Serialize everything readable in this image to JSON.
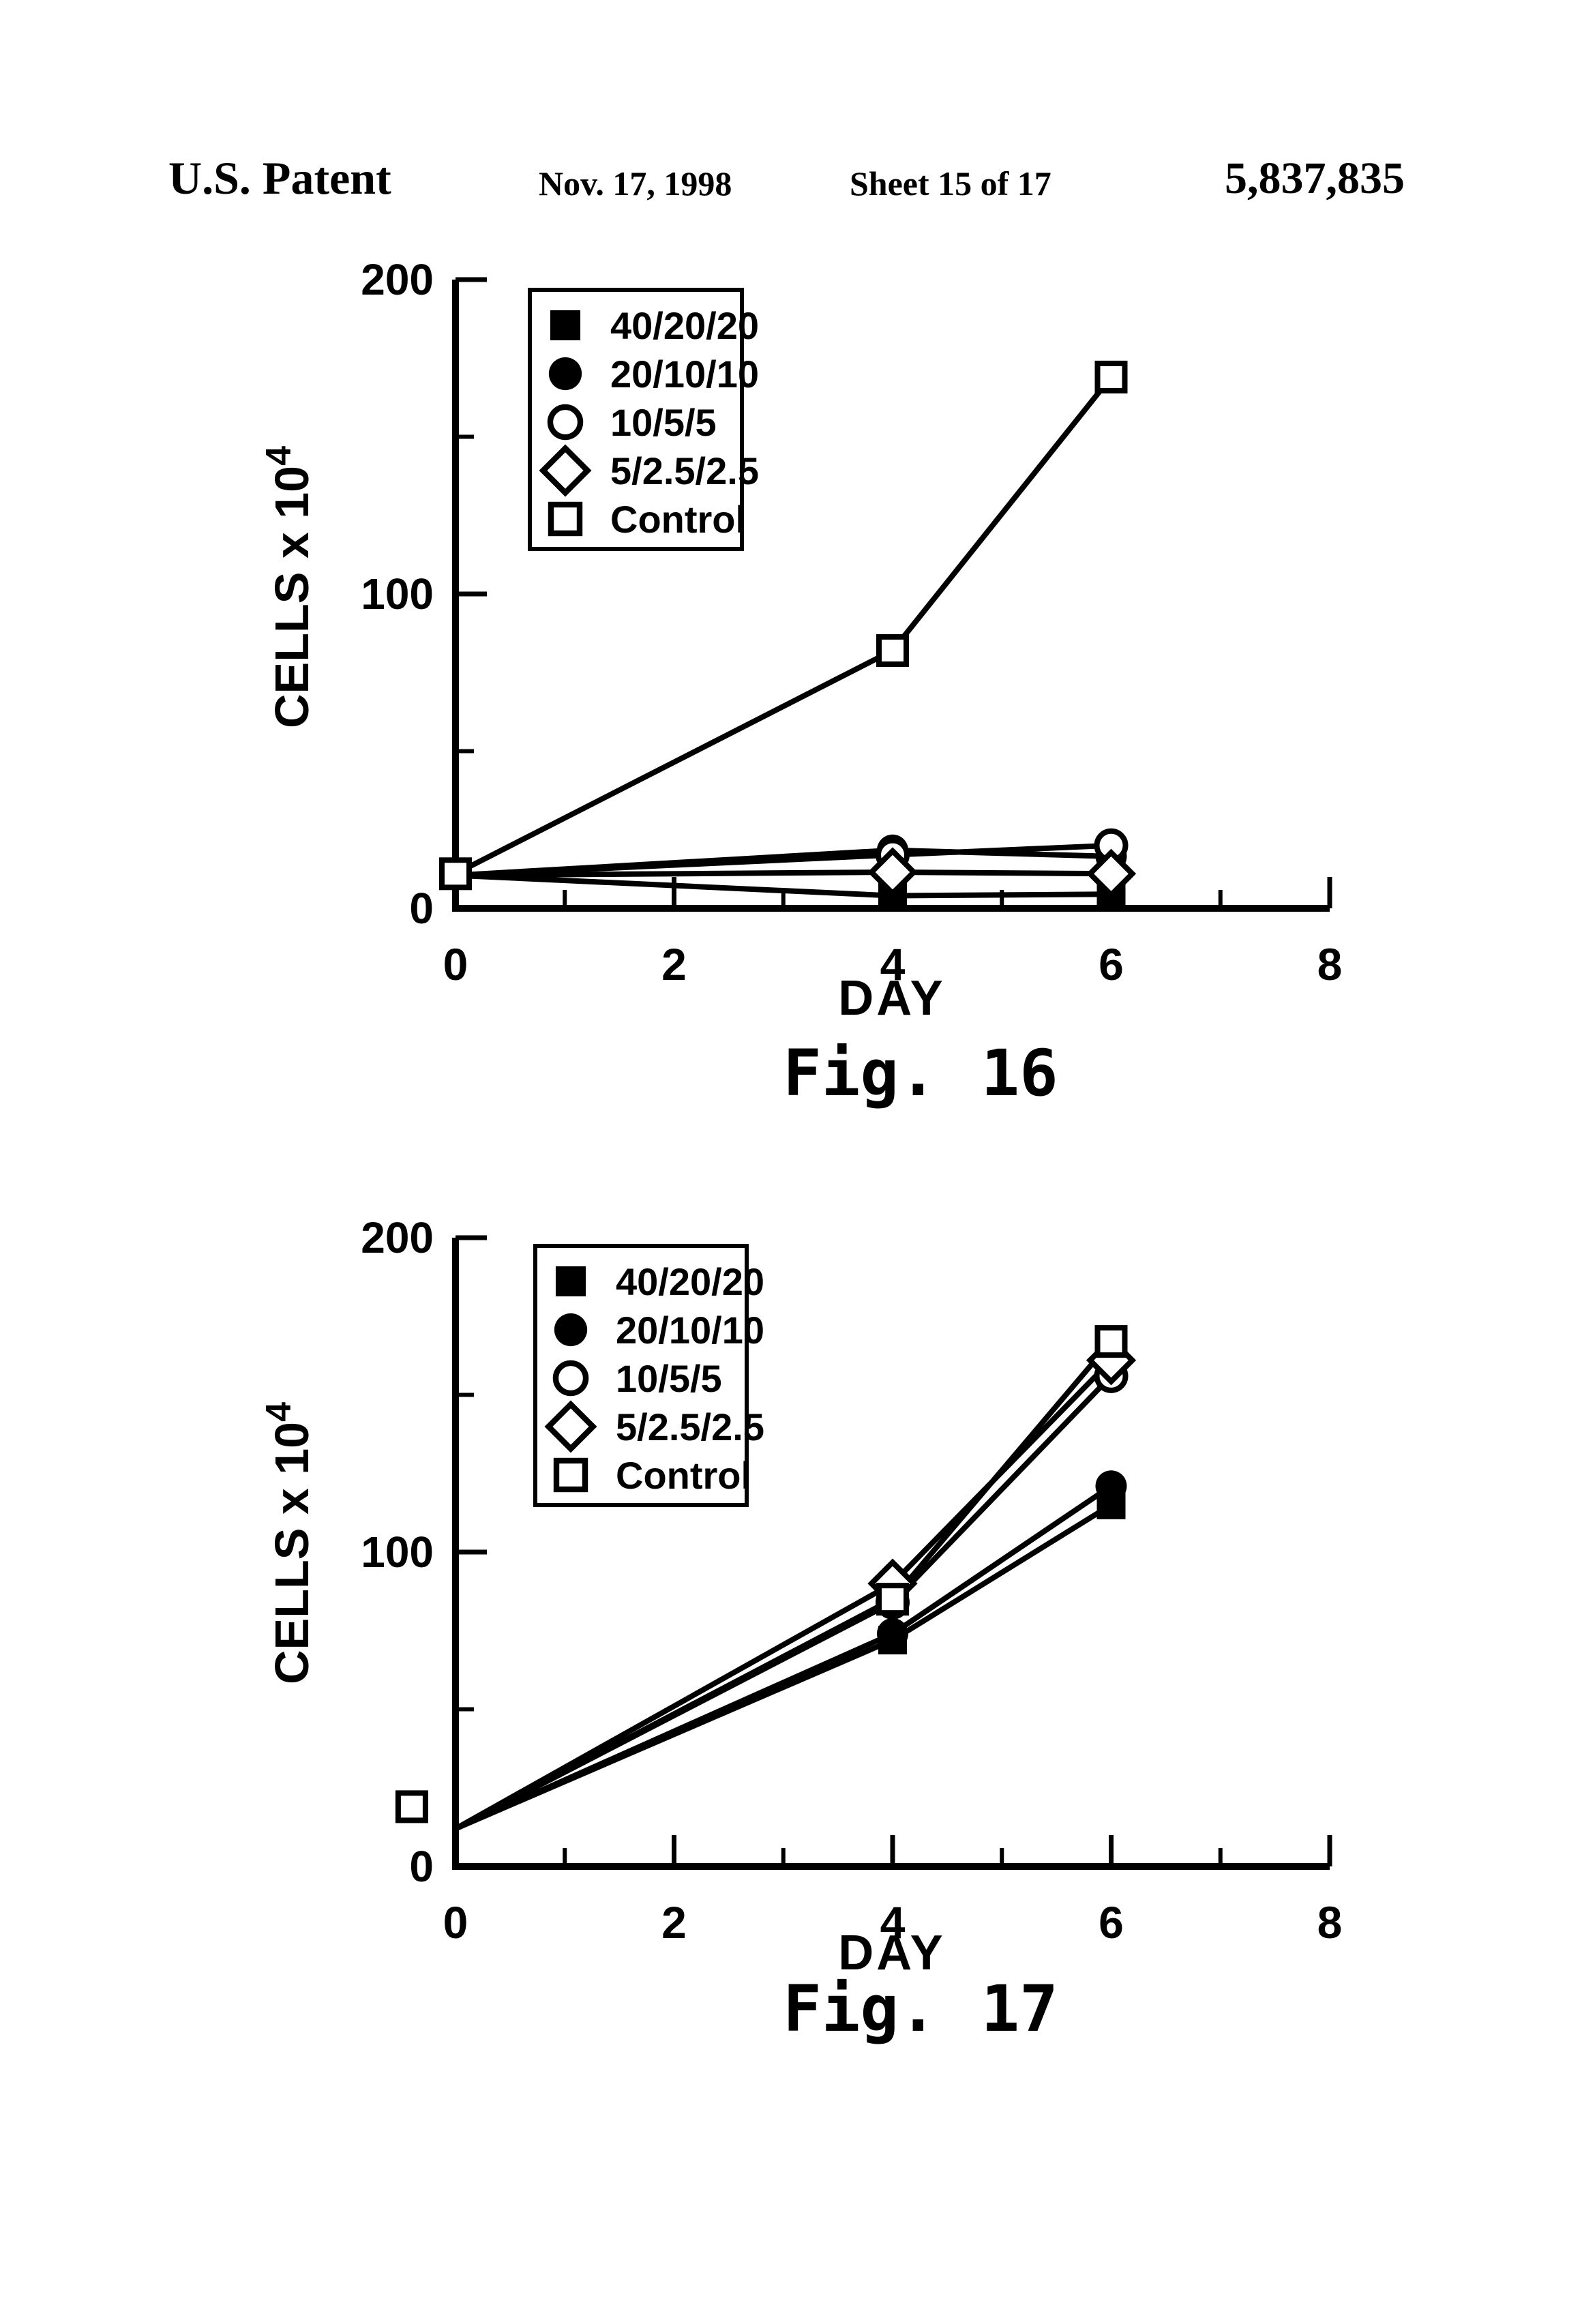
{
  "header": {
    "publication": "U.S. Patent",
    "date": "Nov. 17, 1998",
    "sheet": "Sheet 15 of 17",
    "number": "5,837,835"
  },
  "palette": {
    "ink": "#000000",
    "paper": "#ffffff"
  },
  "chart_data": [
    {
      "type": "line",
      "title_prefix": "Fig.",
      "title_number": "16",
      "xlabel": "DAY",
      "ylabel": "CELLS x 10",
      "ylabel_exponent": "4",
      "xlim": [
        0,
        8
      ],
      "ylim": [
        0,
        200
      ],
      "x_major_ticks": [
        0,
        2,
        4,
        6,
        8
      ],
      "x_minor_ticks": [
        1,
        3,
        5,
        7
      ],
      "y_major_ticks": [
        0,
        100,
        200
      ],
      "y_minor_ticks": [
        50,
        150
      ],
      "grid": "off",
      "legend_position": "upper-left-inside",
      "series": [
        {
          "name": "40/20/20",
          "marker": "filled-square",
          "line": [
            [
              0,
              10.5
            ],
            [
              4,
              4
            ],
            [
              6,
              4.5
            ]
          ],
          "points": [
            [
              4,
              4
            ],
            [
              6,
              4.5
            ]
          ]
        },
        {
          "name": "20/10/10",
          "marker": "filled-circle",
          "line": [
            [
              0,
              10.5
            ],
            [
              4,
              18.5
            ],
            [
              6,
              16.5
            ]
          ],
          "points": [
            [
              4,
              18.5
            ],
            [
              6,
              16.5
            ]
          ]
        },
        {
          "name": "10/5/5",
          "marker": "open-circle",
          "line": [
            [
              0,
              10.5
            ],
            [
              4,
              17
            ],
            [
              6,
              20
            ]
          ],
          "points": [
            [
              4,
              17
            ],
            [
              6,
              20
            ]
          ]
        },
        {
          "name": "5/2.5/2.5",
          "marker": "open-diamond",
          "line": [
            [
              0,
              10.5
            ],
            [
              4,
              11.5
            ],
            [
              6,
              11
            ]
          ],
          "points": [
            [
              4,
              11.5
            ],
            [
              6,
              11
            ]
          ]
        },
        {
          "name": "Control",
          "marker": "open-square",
          "line": [
            [
              0,
              11
            ],
            [
              4,
              82
            ],
            [
              6,
              169
            ]
          ],
          "points": [
            [
              0,
              11
            ],
            [
              4,
              82
            ],
            [
              6,
              169
            ]
          ]
        }
      ]
    },
    {
      "type": "line",
      "title_prefix": "Fig.",
      "title_number": "17",
      "xlabel": "DAY",
      "ylabel": "CELLS x 10",
      "ylabel_exponent": "4",
      "xlim": [
        0,
        8
      ],
      "ylim": [
        0,
        200
      ],
      "x_major_ticks": [
        0,
        2,
        4,
        6,
        8
      ],
      "x_minor_ticks": [
        1,
        3,
        5,
        7
      ],
      "y_major_ticks": [
        0,
        100,
        200
      ],
      "y_minor_ticks": [
        50,
        150
      ],
      "grid": "off",
      "legend_position": "upper-left-inside",
      "series": [
        {
          "name": "40/20/20",
          "marker": "filled-square",
          "line": [
            [
              0,
              12
            ],
            [
              4,
              72
            ],
            [
              6,
              115
            ]
          ],
          "points": [
            [
              4,
              72
            ],
            [
              6,
              115
            ]
          ]
        },
        {
          "name": "20/10/10",
          "marker": "filled-circle",
          "line": [
            [
              0,
              12
            ],
            [
              4,
              74
            ],
            [
              6,
              121
            ]
          ],
          "points": [
            [
              4,
              74
            ],
            [
              6,
              121
            ]
          ]
        },
        {
          "name": "10/5/5",
          "marker": "open-circle",
          "line": [
            [
              0,
              12
            ],
            [
              4,
              84
            ],
            [
              6,
              156
            ]
          ],
          "points": [
            [
              4,
              84
            ],
            [
              6,
              156
            ]
          ]
        },
        {
          "name": "5/2.5/2.5",
          "marker": "open-diamond",
          "line": [
            [
              0,
              12
            ],
            [
              4,
              90
            ],
            [
              6,
              161
            ]
          ],
          "points": [
            [
              4,
              90
            ],
            [
              6,
              161
            ]
          ]
        },
        {
          "name": "Control",
          "marker": "open-square",
          "line": [
            [
              0,
              12
            ],
            [
              4,
              85
            ],
            [
              6,
              167
            ]
          ],
          "points": [
            [
              -0.4,
              19
            ],
            [
              4,
              85
            ],
            [
              6,
              167
            ]
          ]
        }
      ]
    }
  ]
}
